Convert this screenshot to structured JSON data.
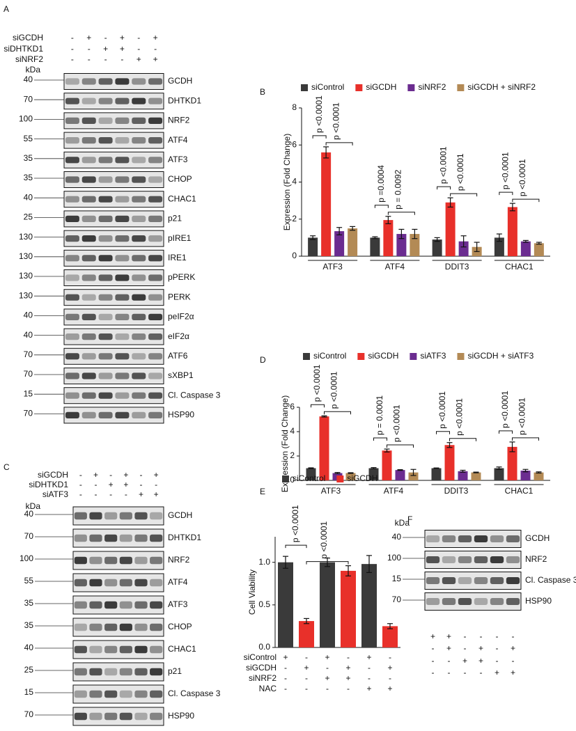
{
  "blots": [
    {
      "letter": "A",
      "kda_label": "kDa",
      "conditions": [
        {
          "label": "siGCDH",
          "values": [
            "-",
            "+",
            "-",
            "+",
            "-",
            "+"
          ]
        },
        {
          "label": "siDHTKD1",
          "values": [
            "-",
            "-",
            "+",
            "+",
            "-",
            "-"
          ]
        },
        {
          "label": "siNRF2",
          "values": [
            "-",
            "-",
            "-",
            "-",
            "+",
            "+"
          ]
        }
      ],
      "bands": [
        {
          "name": "GCDH",
          "kda": 40
        },
        {
          "name": "DHTKD1",
          "kda": 70
        },
        {
          "name": "NRF2",
          "kda": 100
        },
        {
          "name": "ATF4",
          "kda": 55
        },
        {
          "name": "ATF3",
          "kda": 35
        },
        {
          "name": "CHOP",
          "kda": 35
        },
        {
          "name": "CHAC1",
          "kda": 40
        },
        {
          "name": "p21",
          "kda": 25
        },
        {
          "name": "pIRE1",
          "kda": 130
        },
        {
          "name": "IRE1",
          "kda": 130
        },
        {
          "name": "pPERK",
          "kda": 130
        },
        {
          "name": "PERK",
          "kda": 130
        },
        {
          "name": "peIF2α",
          "kda": 40
        },
        {
          "name": "eIF2α",
          "kda": 40
        },
        {
          "name": "ATF6",
          "kda": 70
        },
        {
          "name": "sXBP1",
          "kda": 70
        },
        {
          "name": "Cl. Caspase 3",
          "kda": 15
        },
        {
          "name": "HSP90",
          "kda": 70
        }
      ]
    },
    {
      "letter": "C",
      "kda_label": "kDa",
      "conditions": [
        {
          "label": "siGCDH",
          "values": [
            "-",
            "+",
            "-",
            "+",
            "-",
            "+"
          ]
        },
        {
          "label": "siDHTKD1",
          "values": [
            "-",
            "-",
            "+",
            "+",
            "-",
            "-"
          ]
        },
        {
          "label": "siATF3",
          "values": [
            "-",
            "-",
            "-",
            "-",
            "+",
            "+"
          ]
        }
      ],
      "bands": [
        {
          "name": "GCDH",
          "kda": 40
        },
        {
          "name": "DHTKD1",
          "kda": 70
        },
        {
          "name": "NRF2",
          "kda": 100
        },
        {
          "name": "ATF4",
          "kda": 55
        },
        {
          "name": "ATF3",
          "kda": 35
        },
        {
          "name": "CHOP",
          "kda": 35
        },
        {
          "name": "CHAC1",
          "kda": 40
        },
        {
          "name": "p21",
          "kda": 25
        },
        {
          "name": "Cl. Caspase 3",
          "kda": 15
        },
        {
          "name": "HSP90",
          "kda": 70
        }
      ]
    },
    {
      "letter": "F",
      "kda_label": "kDa",
      "conditions": [
        {
          "values": [
            "+",
            "+",
            "-",
            "-",
            "-",
            "-"
          ]
        },
        {
          "values": [
            "-",
            "+",
            "-",
            "+",
            "-",
            "+"
          ]
        },
        {
          "values": [
            "-",
            "-",
            "+",
            "+",
            "-",
            "-"
          ]
        },
        {
          "values": [
            "-",
            "-",
            "-",
            "-",
            "+",
            "+"
          ]
        }
      ],
      "bands": [
        {
          "name": "GCDH",
          "kda": 40
        },
        {
          "name": "NRF2",
          "kda": 100
        },
        {
          "name": "Cl. Caspase 3",
          "kda": 15
        },
        {
          "name": "HSP90",
          "kda": 70
        }
      ]
    }
  ],
  "chart_data": [
    {
      "type": "bar",
      "letter": "B",
      "y_label": "Expression (Fold Change)",
      "categories": [
        "ATF3",
        "ATF4",
        "DDIT3",
        "CHAC1"
      ],
      "series": [
        {
          "name": "siControl",
          "color": "#3a3a3a",
          "values": [
            1.0,
            1.0,
            0.9,
            1.0
          ],
          "errors": [
            0.1,
            0.05,
            0.1,
            0.2
          ]
        },
        {
          "name": "siGCDH",
          "color": "#e8302a",
          "values": [
            5.6,
            1.95,
            2.9,
            2.65
          ],
          "errors": [
            0.3,
            0.2,
            0.25,
            0.2
          ]
        },
        {
          "name": "siNRF2",
          "color": "#6b2c90",
          "values": [
            1.35,
            1.2,
            0.8,
            0.8
          ],
          "errors": [
            0.2,
            0.25,
            0.3,
            0.05
          ]
        },
        {
          "name": "siGCDH + siNRF2",
          "color": "#b38a55",
          "values": [
            1.5,
            1.2,
            0.5,
            0.7
          ],
          "errors": [
            0.1,
            0.25,
            0.25,
            0.05
          ]
        }
      ],
      "p_values": [
        [
          "p <0.0001",
          "p <0.0001"
        ],
        [
          "p =0.0004",
          "p = 0.0092"
        ],
        [
          "p <0.0001",
          "p <0.0001"
        ],
        [
          "p <0.0001",
          "p <0.0001"
        ]
      ],
      "ylim": [
        0,
        8
      ],
      "yticks": [
        0,
        2,
        4,
        6,
        8
      ]
    },
    {
      "type": "bar",
      "letter": "D",
      "y_label": "Expression (Fold Change)",
      "categories": [
        "ATF3",
        "ATF4",
        "DDIT3",
        "CHAC1"
      ],
      "series": [
        {
          "name": "siControl",
          "color": "#3a3a3a",
          "values": [
            1.0,
            1.0,
            1.0,
            1.0
          ],
          "errors": [
            0.03,
            0.05,
            0.02,
            0.1
          ]
        },
        {
          "name": "siGCDH",
          "color": "#e8302a",
          "values": [
            5.25,
            2.45,
            2.9,
            2.75
          ],
          "errors": [
            0.05,
            0.12,
            0.2,
            0.4
          ]
        },
        {
          "name": "siATF3",
          "color": "#6b2c90",
          "values": [
            0.6,
            0.85,
            0.75,
            0.8
          ],
          "errors": [
            0.05,
            0.03,
            0.08,
            0.1
          ]
        },
        {
          "name": "siGCDH + siATF3",
          "color": "#b38a55",
          "values": [
            0.6,
            0.65,
            0.65,
            0.65
          ],
          "errors": [
            0.03,
            0.25,
            0.03,
            0.05
          ]
        }
      ],
      "p_values": [
        [
          "p <0.0001",
          "p <0.0001"
        ],
        [
          "p = 0.0001",
          "p <0.0001"
        ],
        [
          "p <0.0001",
          "p <0.0001"
        ],
        [
          "p <0.0001",
          "p <0.0001"
        ]
      ],
      "ylim": [
        0,
        6
      ],
      "yticks": [
        0,
        2,
        4,
        6
      ]
    },
    {
      "type": "bar",
      "letter": "E",
      "y_label": "Cell Viability",
      "series": [
        {
          "name": "siControl",
          "color": "#3a3a3a",
          "values": [
            1.0,
            null,
            1.0,
            null,
            0.98,
            null
          ],
          "errors": [
            0.07,
            null,
            0.05,
            null,
            0.1,
            null
          ]
        },
        {
          "name": "siGCDH",
          "color": "#e8302a",
          "values": [
            null,
            0.31,
            null,
            0.9,
            null,
            0.25
          ],
          "errors": [
            null,
            0.03,
            null,
            0.06,
            null,
            0.03
          ]
        }
      ],
      "p_values": [
        "p <0.0001",
        "p <0.0001"
      ],
      "conditions": [
        {
          "label": "siControl",
          "values": [
            "+",
            "-",
            "+",
            "-",
            "+",
            "-"
          ]
        },
        {
          "label": "siGCDH",
          "values": [
            "-",
            "+",
            "-",
            "+",
            "-",
            "+"
          ]
        },
        {
          "label": "siNRF2",
          "values": [
            "-",
            "-",
            "+",
            "+",
            "-",
            "-"
          ]
        },
        {
          "label": "NAC",
          "values": [
            "-",
            "-",
            "-",
            "-",
            "+",
            "+"
          ]
        }
      ],
      "ylim": [
        0,
        1.3
      ],
      "yticks": [
        {
          "value": 0,
          "label": "0.0"
        },
        {
          "value": 0.5,
          "label": "0.5"
        },
        {
          "value": 1,
          "label": "1.0"
        }
      ]
    }
  ]
}
